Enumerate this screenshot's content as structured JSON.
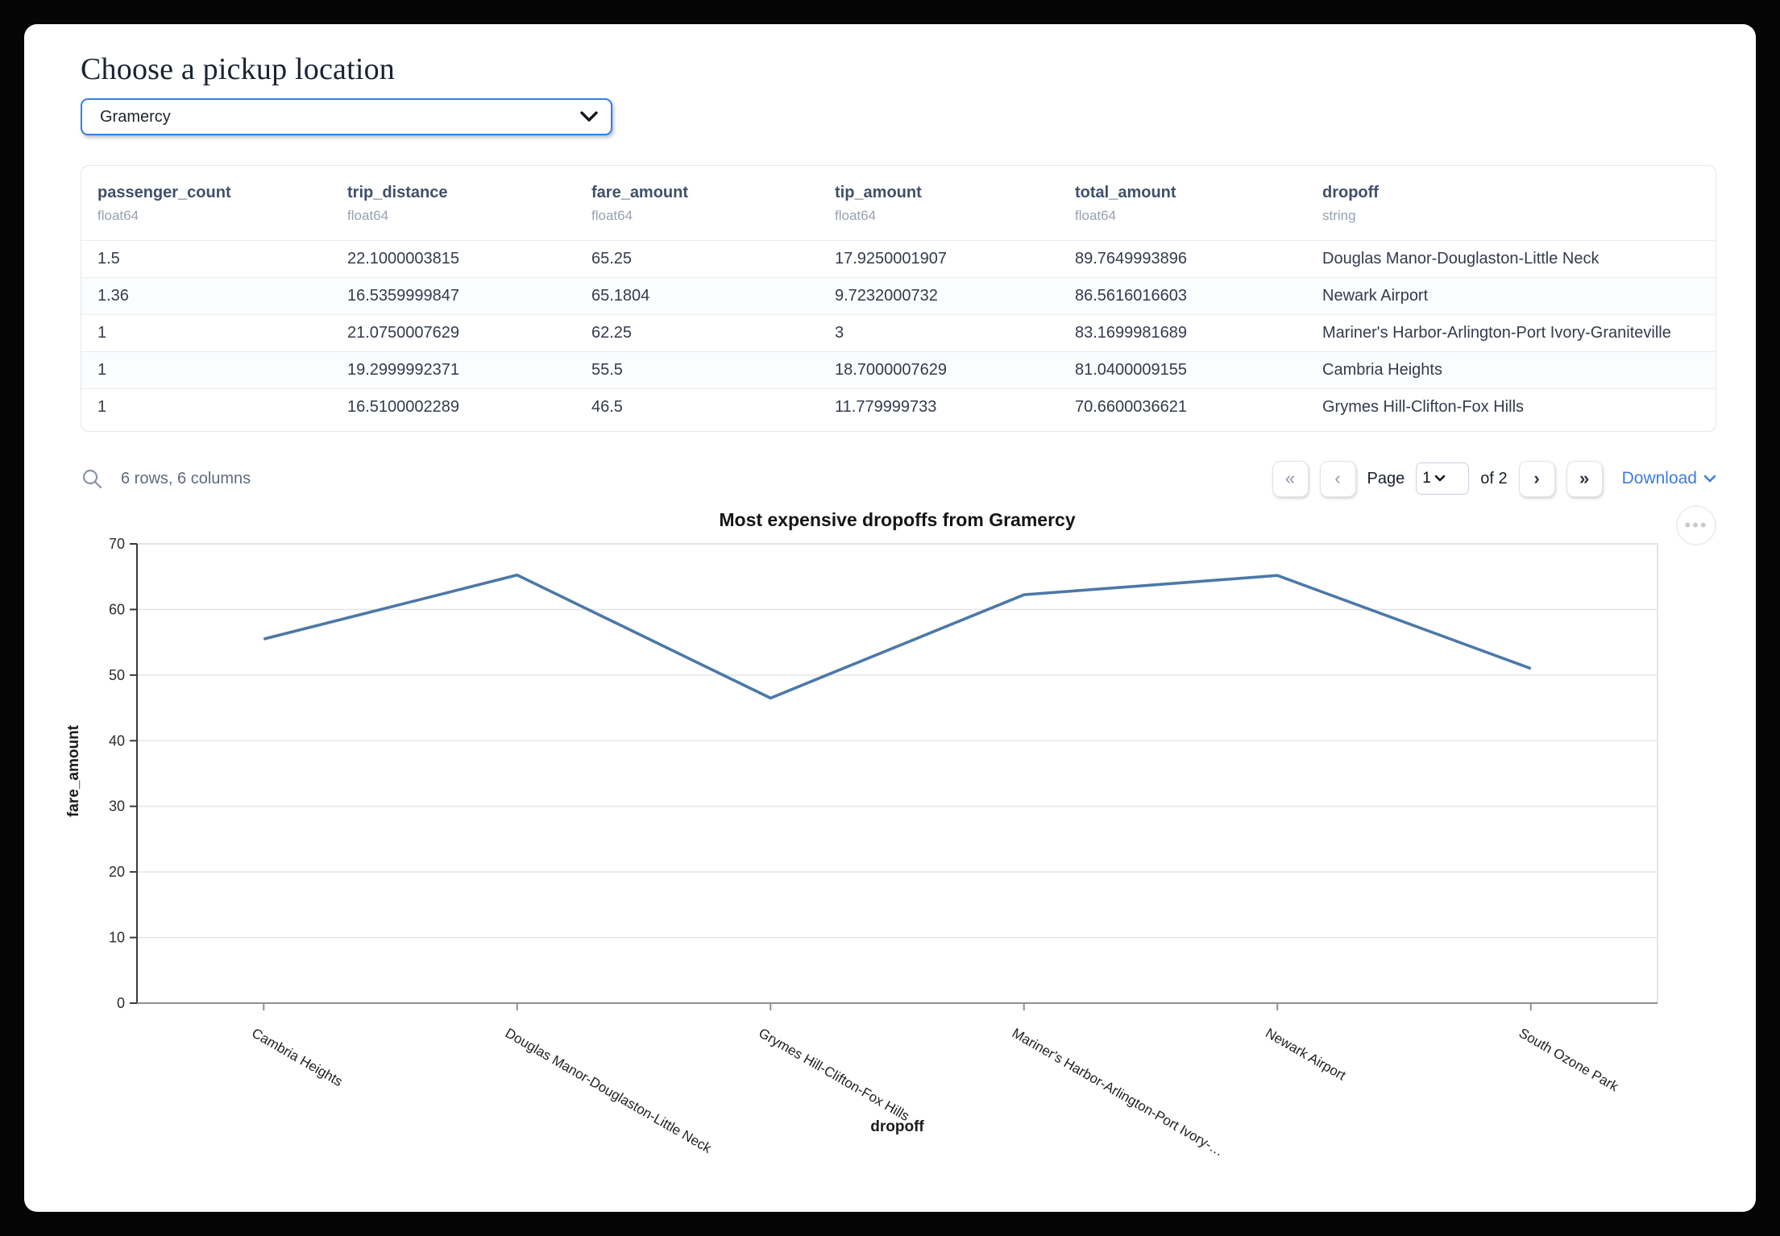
{
  "header": {
    "title": "Choose a pickup location"
  },
  "pickup_select": {
    "value": "Gramercy"
  },
  "table": {
    "columns": [
      {
        "name": "passenger_count",
        "type": "float64"
      },
      {
        "name": "trip_distance",
        "type": "float64"
      },
      {
        "name": "fare_amount",
        "type": "float64"
      },
      {
        "name": "tip_amount",
        "type": "float64"
      },
      {
        "name": "total_amount",
        "type": "float64"
      },
      {
        "name": "dropoff",
        "type": "string"
      }
    ],
    "rows": [
      [
        "1.5",
        "22.1000003815",
        "65.25",
        "17.9250001907",
        "89.7649993896",
        "Douglas Manor-Douglaston-Little Neck"
      ],
      [
        "1.36",
        "16.5359999847",
        "65.1804",
        "9.7232000732",
        "86.5616016603",
        "Newark Airport"
      ],
      [
        "1",
        "21.0750007629",
        "62.25",
        "3",
        "83.1699981689",
        "Mariner's Harbor-Arlington-Port Ivory-Graniteville"
      ],
      [
        "1",
        "19.2999992371",
        "55.5",
        "18.7000007629",
        "81.0400009155",
        "Cambria Heights"
      ],
      [
        "1",
        "16.5100002289",
        "46.5",
        "11.779999733",
        "70.6600036621",
        "Grymes Hill-Clifton-Fox Hills"
      ]
    ],
    "summary": "6 rows, 6 columns",
    "pagination": {
      "first_icon": "«",
      "prev_icon": "‹",
      "page_label": "Page",
      "current_page": "1",
      "of_label": "of 2",
      "next_icon": "›",
      "last_icon": "»"
    },
    "download_label": "Download"
  },
  "chart_data": {
    "type": "line",
    "title": "Most expensive dropoffs from Gramercy",
    "xlabel": "dropoff",
    "ylabel": "fare_amount",
    "categories": [
      "Cambria Heights",
      "Douglas Manor-Douglaston-Little Neck",
      "Grymes Hill-Clifton-Fox Hills",
      "Mariner's Harbor-Arlington-Port Ivory-…",
      "Newark Airport",
      "South Ozone Park"
    ],
    "values": [
      55.5,
      65.25,
      46.5,
      62.25,
      65.1804,
      51
    ],
    "ylim": [
      0,
      70
    ],
    "yticks": [
      0,
      10,
      20,
      30,
      40,
      50,
      60,
      70
    ],
    "grid": true,
    "legend": "none",
    "line_color": "#4c78a8"
  },
  "colors": {
    "accent": "#3080e8",
    "link_blue": "#3d7ddb",
    "line_blue": "#4c78a8"
  }
}
